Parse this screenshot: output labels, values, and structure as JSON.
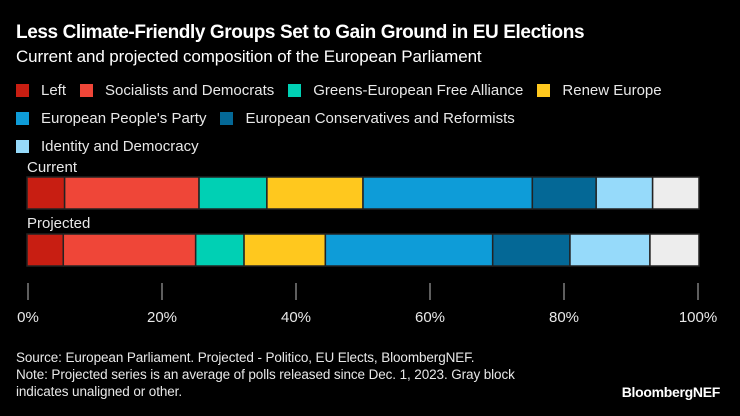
{
  "title": "Less Climate-Friendly Groups Set to Gain Ground in EU Elections",
  "subtitle": "Current and projected composition of the European Parliament",
  "footer": {
    "source": "Source: European Parliament. Projected - Politico, EU Elects, BloombergNEF.",
    "note": "Note: Projected series is an average of polls released since Dec. 1, 2023. Gray block indicates unaligned or other."
  },
  "logo": "BloombergNEF",
  "chart_data": {
    "type": "bar",
    "orientation": "horizontal",
    "stacked": true,
    "title": "Less Climate-Friendly Groups Set to Gain Ground in EU Elections",
    "subtitle": "Current and projected composition of the European Parliament",
    "xlabel": "",
    "ylabel": "",
    "xlim": [
      0,
      100
    ],
    "x_ticks": [
      0,
      20,
      40,
      60,
      80,
      100
    ],
    "x_tick_labels": [
      "0%",
      "20%",
      "40%",
      "60%",
      "80%",
      "100%"
    ],
    "grid": false,
    "legend_position": "top",
    "categories": [
      "Current",
      "Projected"
    ],
    "series": [
      {
        "name": "Left",
        "color": "#C81E12",
        "values": [
          5.6,
          5.4
        ]
      },
      {
        "name": "Socialists and Democrats",
        "color": "#EF4638",
        "values": [
          20.0,
          19.7
        ]
      },
      {
        "name": "Greens-European Free Alliance",
        "color": "#00D0B4",
        "values": [
          10.1,
          7.2
        ]
      },
      {
        "name": "Renew Europe",
        "color": "#FFC81E",
        "values": [
          14.3,
          12.1
        ]
      },
      {
        "name": "European People's Party",
        "color": "#0E9CD8",
        "values": [
          25.2,
          24.9
        ]
      },
      {
        "name": "European Conservatives and Reformists",
        "color": "#046896",
        "values": [
          9.5,
          11.5
        ]
      },
      {
        "name": "Identity and Democracy",
        "color": "#96DAFA",
        "values": [
          8.4,
          11.9
        ]
      },
      {
        "name": "Unaligned or other",
        "color": "#EDEDED",
        "values": [
          6.9,
          7.3
        ],
        "in_legend": false
      }
    ]
  }
}
